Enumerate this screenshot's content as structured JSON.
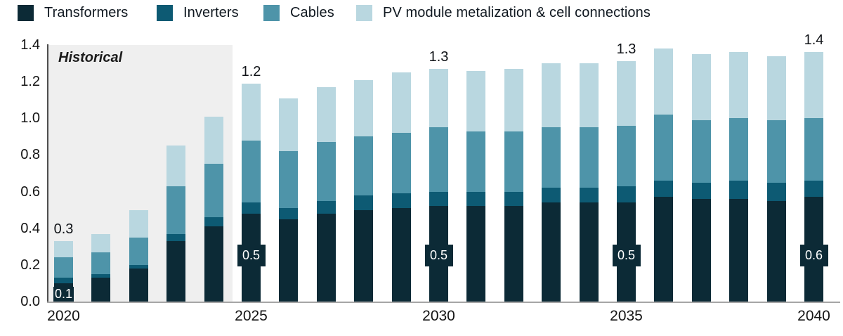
{
  "chart_data": {
    "type": "bar",
    "stacked": true,
    "x": [
      2020,
      2021,
      2022,
      2023,
      2024,
      2025,
      2026,
      2027,
      2028,
      2029,
      2030,
      2031,
      2032,
      2033,
      2034,
      2035,
      2036,
      2037,
      2038,
      2039,
      2040
    ],
    "series": [
      {
        "name": "Transformers",
        "color": "#0c2a36",
        "values": [
          0.1,
          0.13,
          0.18,
          0.33,
          0.41,
          0.48,
          0.45,
          0.48,
          0.5,
          0.51,
          0.52,
          0.52,
          0.52,
          0.54,
          0.54,
          0.54,
          0.57,
          0.56,
          0.56,
          0.55,
          0.57
        ]
      },
      {
        "name": "Inverters",
        "color": "#0d5a73",
        "values": [
          0.03,
          0.02,
          0.02,
          0.04,
          0.05,
          0.06,
          0.06,
          0.07,
          0.08,
          0.08,
          0.08,
          0.08,
          0.08,
          0.08,
          0.08,
          0.09,
          0.09,
          0.09,
          0.1,
          0.1,
          0.09
        ]
      },
      {
        "name": "Cables",
        "color": "#4e94a9",
        "values": [
          0.11,
          0.12,
          0.15,
          0.26,
          0.29,
          0.34,
          0.31,
          0.32,
          0.32,
          0.33,
          0.35,
          0.33,
          0.33,
          0.33,
          0.33,
          0.33,
          0.36,
          0.34,
          0.34,
          0.34,
          0.34
        ]
      },
      {
        "name": "PV module metalization & cell connections",
        "color": "#b9d7e0",
        "values": [
          0.09,
          0.1,
          0.15,
          0.22,
          0.26,
          0.31,
          0.29,
          0.3,
          0.31,
          0.33,
          0.32,
          0.33,
          0.34,
          0.35,
          0.35,
          0.35,
          0.36,
          0.36,
          0.36,
          0.35,
          0.36
        ]
      }
    ],
    "total_labels": [
      {
        "year": 2020,
        "text": "0.3"
      },
      {
        "year": 2025,
        "text": "1.2"
      },
      {
        "year": 2030,
        "text": "1.3"
      },
      {
        "year": 2035,
        "text": "1.3"
      },
      {
        "year": 2040,
        "text": "1.4"
      }
    ],
    "inside_labels": [
      {
        "year": 2020,
        "text": "0.1"
      },
      {
        "year": 2025,
        "text": "0.5"
      },
      {
        "year": 2030,
        "text": "0.5"
      },
      {
        "year": 2035,
        "text": "0.5"
      },
      {
        "year": 2040,
        "text": "0.6"
      }
    ],
    "ylim": [
      0,
      1.4
    ],
    "yticks": [
      0.0,
      0.2,
      0.4,
      0.6,
      0.8,
      1.0,
      1.2,
      1.4
    ],
    "ytick_labels": [
      "0.0",
      "0.2",
      "0.4",
      "0.6",
      "0.8",
      "1.0",
      "1.2",
      "1.4"
    ],
    "xticks": [
      2020,
      2025,
      2030,
      2035,
      2040
    ],
    "grid": false,
    "legend_position": "top",
    "historical_region": {
      "label": "Historical",
      "from": 2020,
      "to": 2024
    },
    "colors": {
      "label_box_bg": "#0c2a36",
      "label_box_text": "#ffffff",
      "historical_bg": "#efefef",
      "y_axis_line": "#4d4d4d",
      "x_axis_line": "#a6a6a6"
    }
  }
}
